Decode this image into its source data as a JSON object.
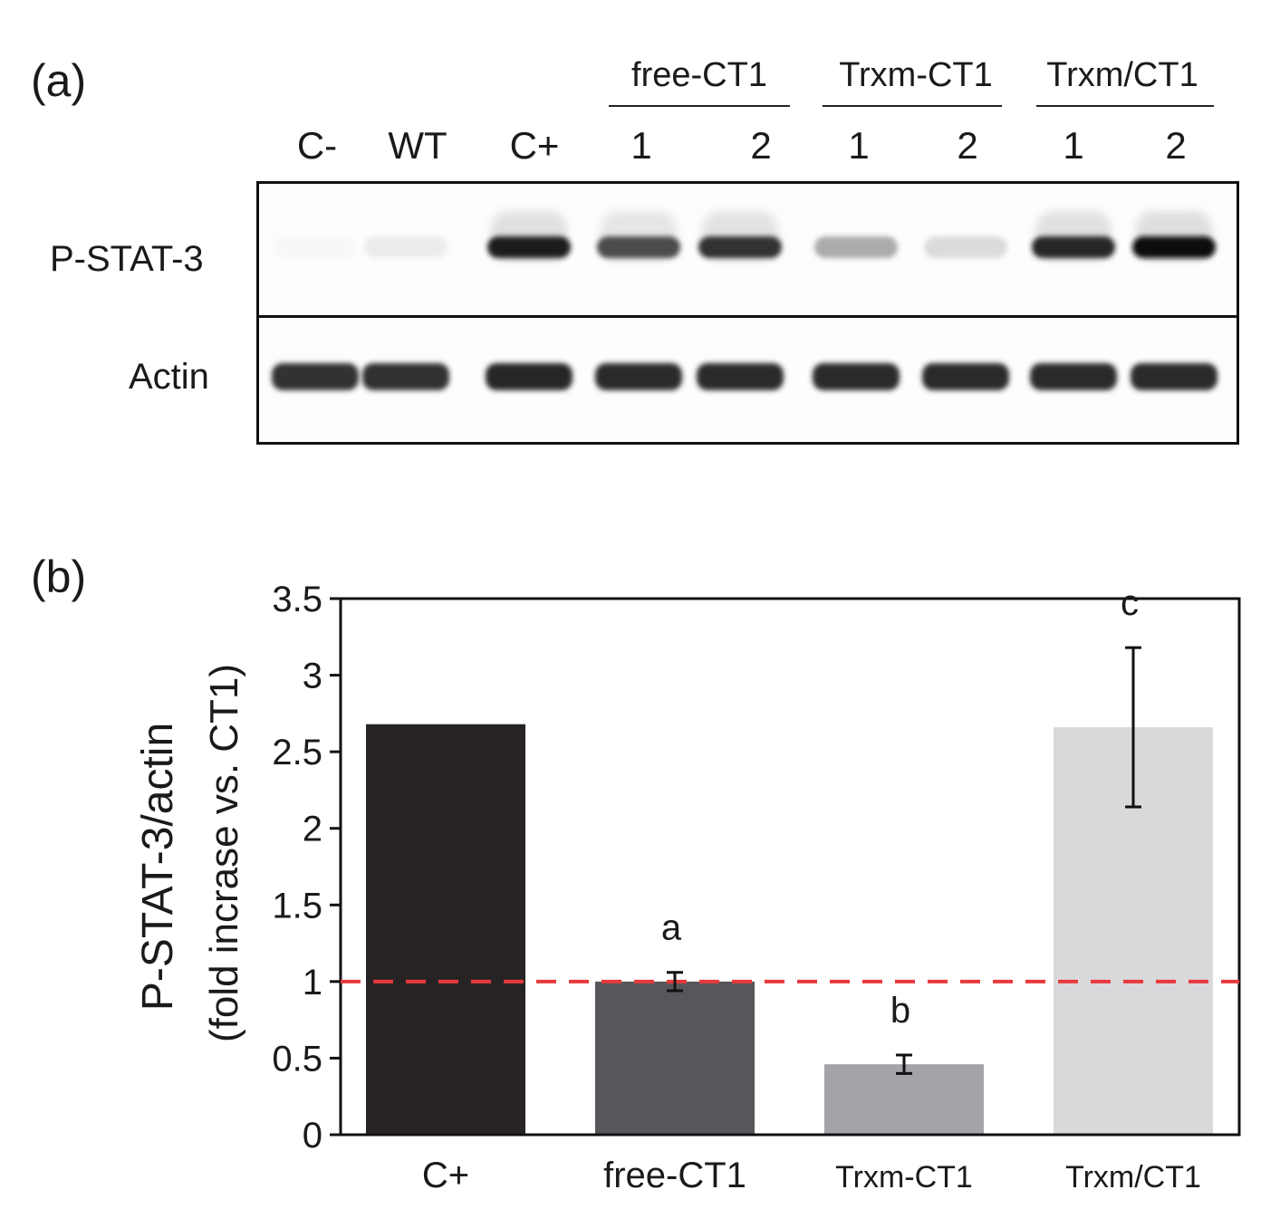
{
  "panel_a": {
    "label": "(a)",
    "groups": [
      "free-CT1",
      "Trxm-CT1",
      "Trxm/CT1"
    ],
    "lanes": [
      "C-",
      "WT",
      "C+",
      "1",
      "2",
      "1",
      "2",
      "1",
      "2"
    ],
    "rows": [
      "P-STAT-3",
      "Actin"
    ],
    "pstat_intensity": [
      0.03,
      0.08,
      0.95,
      0.75,
      0.85,
      0.35,
      0.15,
      0.9,
      1.0
    ],
    "actin_intensity": [
      0.85,
      0.85,
      0.9,
      0.88,
      0.88,
      0.88,
      0.88,
      0.88,
      0.88
    ]
  },
  "panel_b": {
    "label": "(b)"
  },
  "chart_data": {
    "type": "bar",
    "categories": [
      "C+",
      "free-CT1",
      "Trxm-CT1",
      "Trxm/CT1"
    ],
    "values": [
      2.68,
      1.0,
      0.46,
      2.66
    ],
    "errors": [
      null,
      0.06,
      0.06,
      0.52
    ],
    "sig_letters": [
      "",
      "a",
      "b",
      "c"
    ],
    "colors": [
      "#272324",
      "#58565a",
      "#a4a3a8",
      "#d9d9db"
    ],
    "ylabel": "P-STAT-3/actin",
    "ylabel2": "(fold incrase vs. CT1)",
    "ylim": [
      0,
      3.5
    ],
    "yticks": [
      0,
      0.5,
      1,
      1.5,
      2,
      2.5,
      3,
      3.5
    ],
    "ytick_labels": [
      "0",
      "0.5",
      "1",
      "1.5",
      "2",
      "2.5",
      "3",
      "3.5"
    ],
    "reference_line": 1,
    "reference_color": "#e8393c",
    "grid": false
  }
}
